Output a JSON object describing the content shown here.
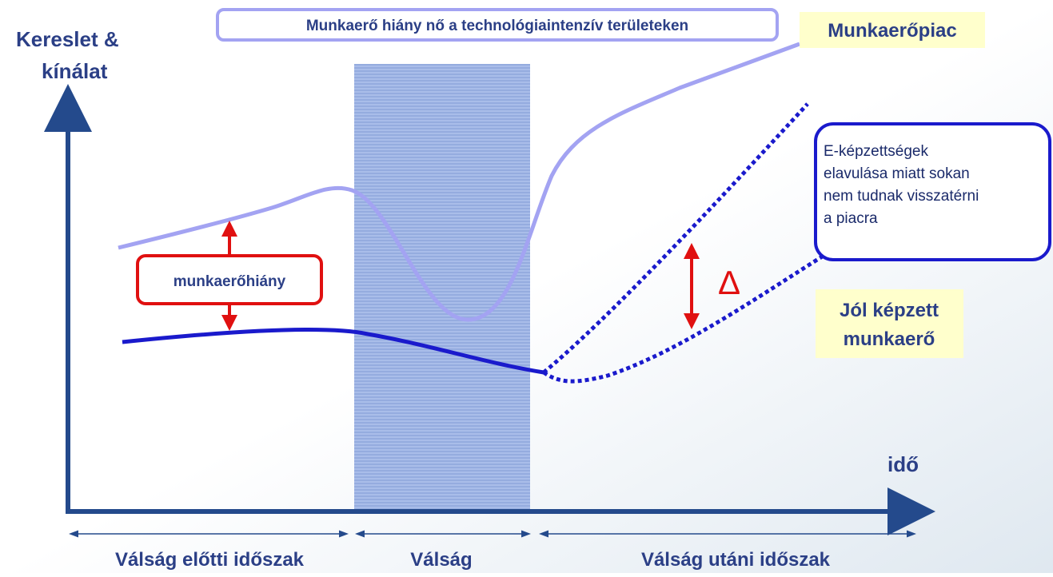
{
  "axes": {
    "y_label": [
      "Kereslet &",
      "kínálat"
    ],
    "x_label": "idő"
  },
  "annotations": {
    "headline": "Munkaerő hiány nő a technológiaintenzív területeken",
    "market": "Munkaerőpiac",
    "callout": [
      "E-képzettségek",
      "elavulása miatt sokan",
      "nem tudnak visszatérni",
      "a piacra"
    ],
    "gap": "munkaerőhiány",
    "delta": "Δ",
    "skilled": [
      "Jól képzett",
      "munkaerő"
    ]
  },
  "periods": [
    "Válság előtti időszak",
    "Válság",
    "Válság utáni időszak"
  ]
}
